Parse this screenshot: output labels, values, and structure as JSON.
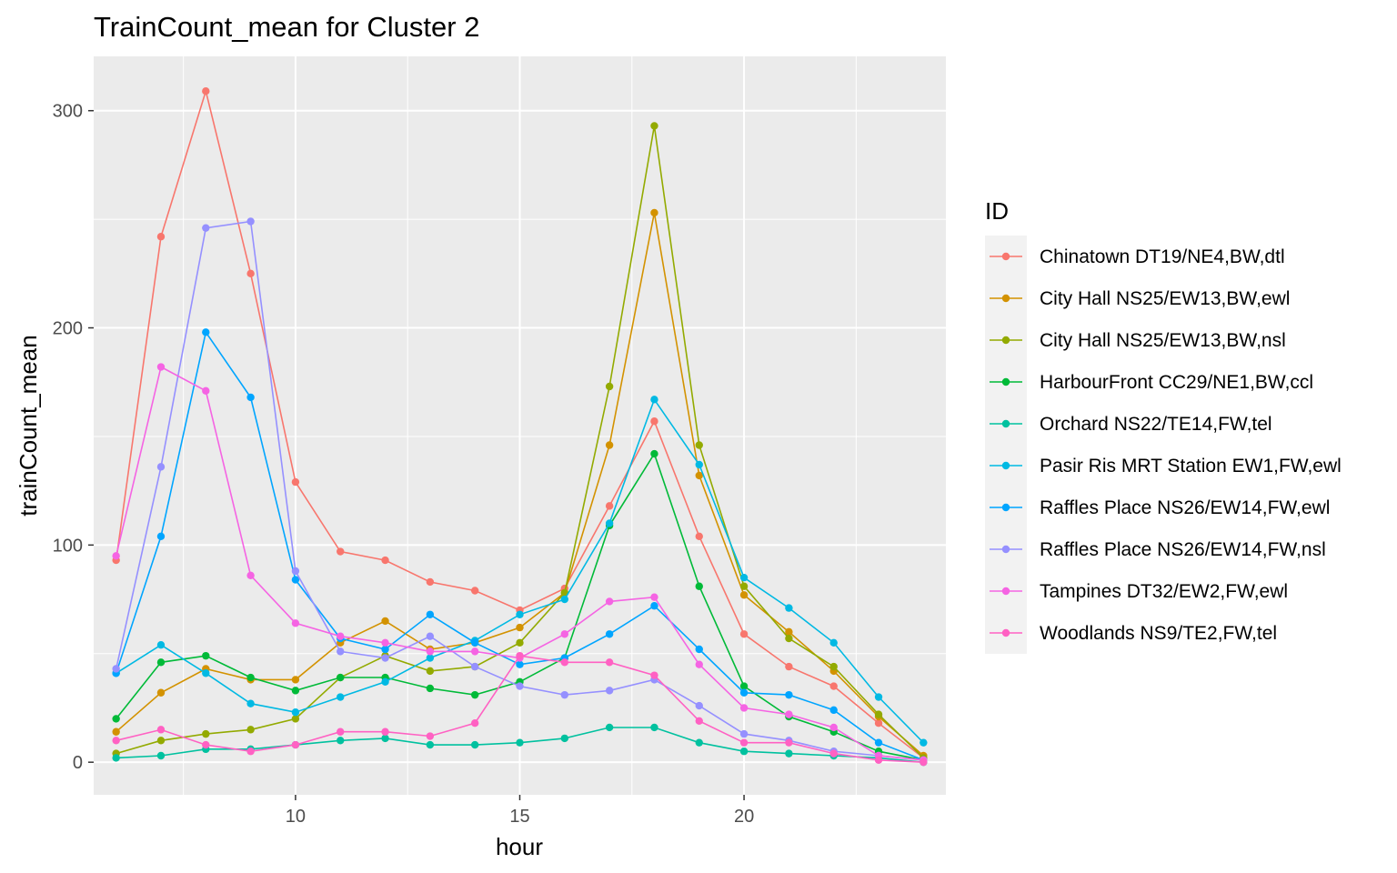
{
  "chart_data": {
    "type": "line",
    "title": "TrainCount_mean for Cluster 2",
    "xlabel": "hour",
    "ylabel": "trainCount_mean",
    "xlim": [
      5.5,
      24.5
    ],
    "ylim": [
      -15,
      325
    ],
    "x_ticks": [
      10,
      15,
      20
    ],
    "y_ticks": [
      0,
      100,
      200,
      300
    ],
    "legend_title": "ID",
    "legend_position": "right",
    "grid": true,
    "panel_color": "#ebebeb",
    "x": [
      6,
      7,
      8,
      9,
      10,
      11,
      12,
      13,
      14,
      15,
      16,
      17,
      18,
      19,
      20,
      21,
      22,
      23,
      24
    ],
    "series": [
      {
        "name": "Chinatown DT19/NE4,BW,dtl",
        "color": "#F8766D",
        "values": [
          93,
          242,
          309,
          225,
          129,
          97,
          93,
          83,
          79,
          70,
          80,
          118,
          157,
          104,
          59,
          44,
          35,
          18,
          2
        ]
      },
      {
        "name": "City Hall NS25/EW13,BW,ewl",
        "color": "#D39200",
        "values": [
          14,
          32,
          43,
          38,
          38,
          55,
          65,
          52,
          55,
          62,
          78,
          146,
          253,
          132,
          77,
          60,
          42,
          21,
          3
        ]
      },
      {
        "name": "City Hall NS25/EW13,BW,nsl",
        "color": "#93AA00",
        "values": [
          4,
          10,
          13,
          15,
          20,
          39,
          49,
          42,
          44,
          55,
          78,
          173,
          293,
          146,
          81,
          57,
          44,
          22,
          2
        ]
      },
      {
        "name": "HarbourFront CC29/NE1,BW,ccl",
        "color": "#00BA38",
        "values": [
          20,
          46,
          49,
          39,
          33,
          39,
          39,
          34,
          31,
          37,
          48,
          109,
          142,
          81,
          35,
          21,
          14,
          5,
          1
        ]
      },
      {
        "name": "Orchard NS22/TE14,FW,tel",
        "color": "#00C19F",
        "values": [
          2,
          3,
          6,
          6,
          8,
          10,
          11,
          8,
          8,
          9,
          11,
          16,
          16,
          9,
          5,
          4,
          3,
          2,
          0
        ]
      },
      {
        "name": "Pasir Ris MRT Station EW1,FW,ewl",
        "color": "#00B9E3",
        "values": [
          41,
          54,
          41,
          27,
          23,
          30,
          37,
          48,
          56,
          68,
          75,
          110,
          167,
          137,
          85,
          71,
          55,
          30,
          9
        ]
      },
      {
        "name": "Raffles Place NS26/EW14,FW,ewl",
        "color": "#00A5FF",
        "values": [
          41,
          104,
          198,
          168,
          84,
          57,
          52,
          68,
          55,
          45,
          48,
          59,
          72,
          52,
          32,
          31,
          24,
          9,
          1
        ]
      },
      {
        "name": "Raffles Place NS26/EW14,FW,nsl",
        "color": "#9590FF",
        "values": [
          43,
          136,
          246,
          249,
          88,
          51,
          48,
          58,
          44,
          35,
          31,
          33,
          38,
          26,
          13,
          10,
          5,
          3,
          1
        ]
      },
      {
        "name": "Tampines DT32/EW2,FW,ewl",
        "color": "#F564E3",
        "values": [
          95,
          182,
          171,
          86,
          64,
          58,
          55,
          51,
          51,
          48,
          59,
          74,
          76,
          45,
          25,
          22,
          16,
          3,
          1
        ]
      },
      {
        "name": "Woodlands NS9/TE2,FW,tel",
        "color": "#FF61C3",
        "values": [
          10,
          15,
          8,
          5,
          8,
          14,
          14,
          12,
          18,
          49,
          46,
          46,
          40,
          19,
          9,
          9,
          4,
          1,
          0
        ]
      }
    ]
  }
}
